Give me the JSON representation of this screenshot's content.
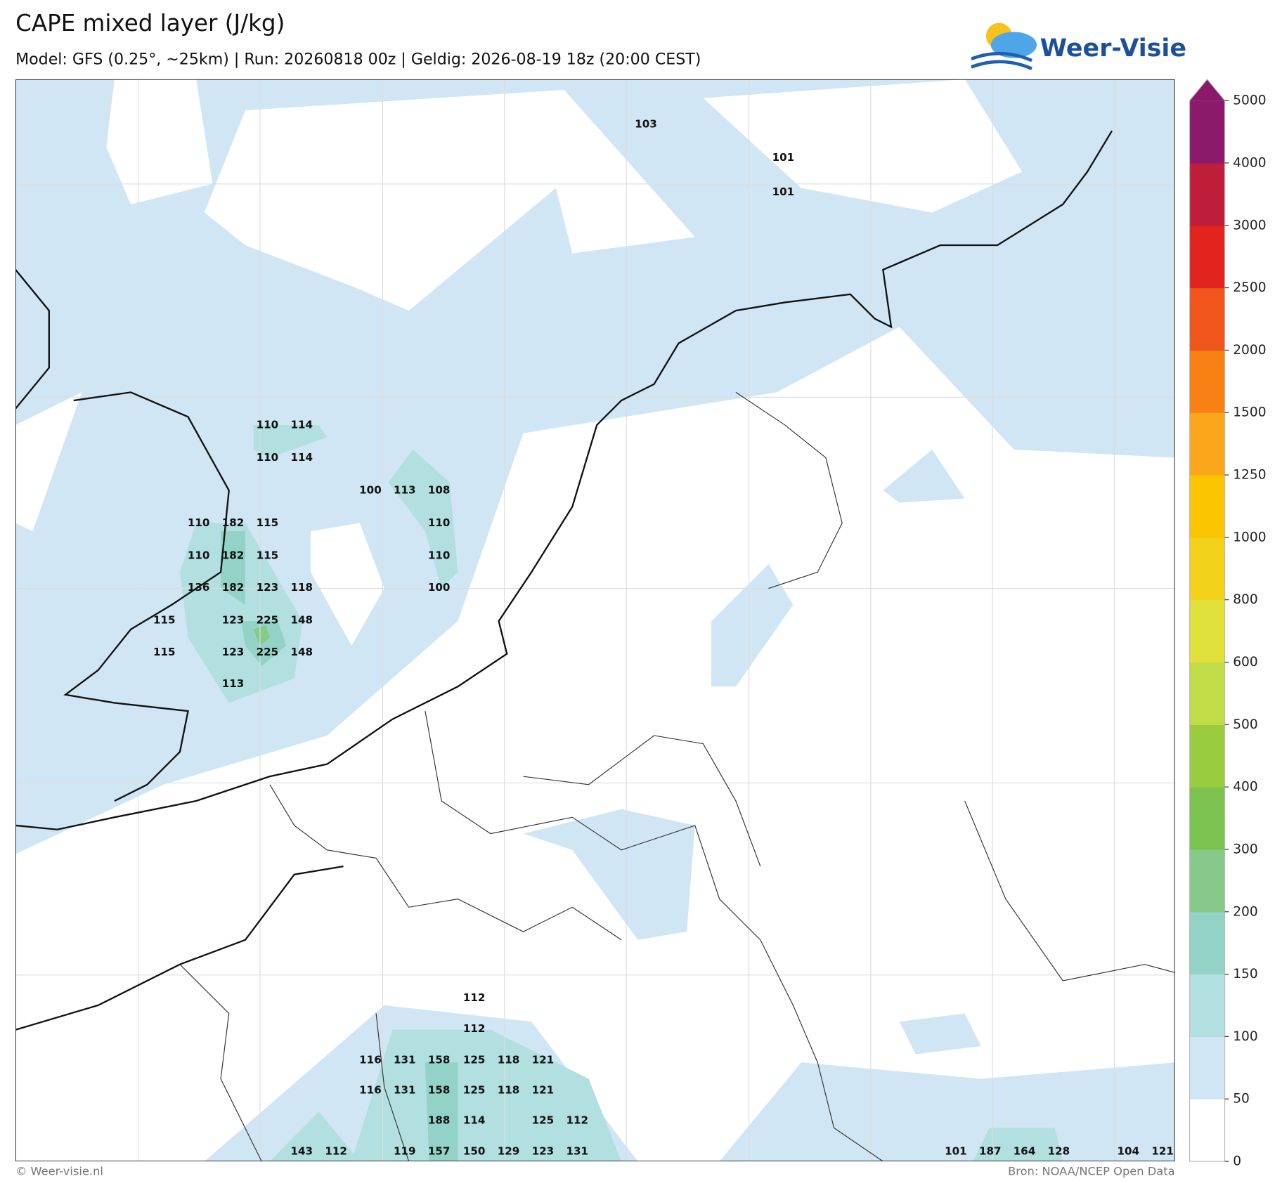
{
  "header": {
    "title": "CAPE mixed layer (J/kg)",
    "subtitle": "Model: GFS (0.25°, ~25km)  |  Run: 20260818 00z  |  Geldig: 2026-08-19 18z (20:00 CEST)"
  },
  "logo": {
    "text": "Weer-Visie"
  },
  "colorbar": {
    "levels": [
      0,
      50,
      100,
      150,
      200,
      300,
      400,
      500,
      600,
      800,
      1000,
      1250,
      1500,
      2000,
      2500,
      3000,
      4000,
      5000
    ],
    "colors": [
      "#ffffff",
      "#d0e6f5",
      "#b2dfe0",
      "#93d2c6",
      "#86c98a",
      "#7bc34e",
      "#9acd3e",
      "#c2dc48",
      "#e0e03a",
      "#f2d21b",
      "#fac400",
      "#fba61b",
      "#f98012",
      "#f0561b",
      "#e2231e",
      "#be1e3a",
      "#8b1a6b"
    ]
  },
  "map": {
    "labels": [
      103,
      101,
      101,
      110,
      114,
      110,
      114,
      100,
      113,
      108,
      110,
      110,
      100,
      110,
      182,
      115,
      110,
      182,
      115,
      136,
      182,
      123,
      118,
      115,
      123,
      225,
      148,
      115,
      123,
      225,
      148,
      113,
      112,
      112,
      116,
      131,
      158,
      125,
      118,
      121,
      116,
      131,
      158,
      125,
      118,
      121,
      188,
      114,
      125,
      112,
      143,
      112,
      119,
      157,
      150,
      129,
      123,
      131,
      101,
      187,
      164,
      128,
      104,
      121
    ]
  },
  "footer": {
    "left": "© Weer-visie.nl",
    "right": "Bron: NOAA/NCEP Open Data"
  }
}
